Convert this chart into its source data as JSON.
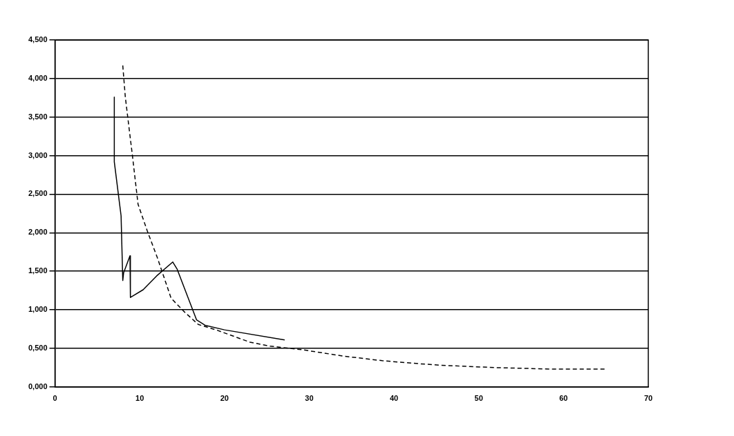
{
  "chart_data": {
    "type": "line",
    "xlim": [
      0,
      70
    ],
    "xticks": [
      0,
      10,
      20,
      30,
      40,
      50,
      60,
      70
    ],
    "ylim": [
      0,
      4.5
    ],
    "yticks": [
      {
        "value": 0,
        "label": "0,000"
      },
      {
        "value": 0.5,
        "label": "0,500"
      },
      {
        "value": 1,
        "label": "1,000"
      },
      {
        "value": 1.5,
        "label": "1,500"
      },
      {
        "value": 2,
        "label": "2,000"
      },
      {
        "value": 2.5,
        "label": "2,500"
      },
      {
        "value": 3,
        "label": "3,000"
      },
      {
        "value": 3.5,
        "label": "3,500"
      },
      {
        "value": 4,
        "label": "4,000"
      },
      {
        "value": 4.5,
        "label": "4,500"
      }
    ],
    "grid": "y",
    "marker": "none",
    "series": [
      {
        "color": "#000000",
        "line_style": "dashed",
        "x": [
          8.0,
          8.3,
          8.75,
          9.15,
          9.8,
          10.9,
          12.1,
          13.7,
          15.3,
          16.9,
          19.0,
          21,
          23,
          25.3,
          29.3,
          34,
          38.6,
          43,
          45.6,
          52,
          58.9,
          64.9
        ],
        "values": [
          4.17,
          3.76,
          3.35,
          2.99,
          2.37,
          2.02,
          1.67,
          1.15,
          0.97,
          0.81,
          0.74,
          0.66,
          0.58,
          0.53,
          0.48,
          0.4,
          0.34,
          0.3,
          0.28,
          0.25,
          0.23,
          0.23
        ]
      },
      {
        "color": "#000000",
        "line_style": "solid",
        "x": [
          7.0,
          7.0,
          7.5,
          7.8,
          8.0,
          8.1,
          8.85,
          8.9,
          10.4,
          12.0,
          13.9,
          14.4,
          16.7,
          17.7,
          20,
          27.1
        ],
        "values": [
          3.76,
          2.92,
          2.48,
          2.22,
          1.38,
          1.48,
          1.7,
          1.16,
          1.26,
          1.44,
          1.62,
          1.53,
          0.87,
          0.8,
          0.74,
          0.61
        ]
      }
    ]
  }
}
